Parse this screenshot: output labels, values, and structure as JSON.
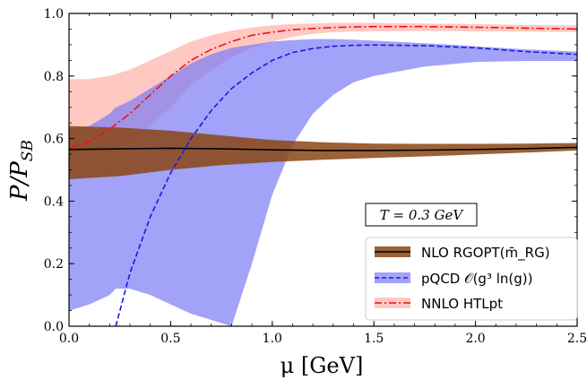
{
  "chart_data": {
    "type": "line",
    "xlabel": "μ [GeV]",
    "ylabel": "P/P_SB",
    "ylabel_main": "P/P",
    "ylabel_sub": "SB",
    "xlim": [
      0.0,
      2.5
    ],
    "ylim": [
      0.0,
      1.0
    ],
    "x_ticks": [
      "0.0",
      "0.5",
      "1.0",
      "1.5",
      "2.0",
      "2.5"
    ],
    "y_ticks": [
      "0.0",
      "0.2",
      "0.4",
      "0.6",
      "0.8",
      "1.0"
    ],
    "annotation": "T = 0.3 GeV",
    "legend_position": "lower-right",
    "series": [
      {
        "name": "NNLO HTLpt",
        "style": "dashdot",
        "line_color": "#ee1111",
        "band_color": "#ffb0a8",
        "band_opacity": 0.7,
        "x": [
          0.0,
          0.1,
          0.2,
          0.3,
          0.4,
          0.5,
          0.6,
          0.7,
          0.8,
          0.9,
          1.0,
          1.1,
          1.2,
          1.3,
          1.4,
          1.5,
          1.75,
          2.0,
          2.25,
          2.5
        ],
        "y": [
          0.57,
          0.59,
          0.63,
          0.68,
          0.74,
          0.8,
          0.85,
          0.885,
          0.91,
          0.93,
          0.94,
          0.948,
          0.952,
          0.955,
          0.957,
          0.958,
          0.958,
          0.956,
          0.953,
          0.95
        ],
        "lower": [
          0.56,
          0.56,
          0.57,
          0.59,
          0.64,
          0.7,
          0.77,
          0.82,
          0.86,
          0.89,
          0.91,
          0.925,
          0.935,
          0.94,
          0.942,
          0.943,
          0.944,
          0.943,
          0.942,
          0.94
        ],
        "upper": [
          0.79,
          0.79,
          0.8,
          0.82,
          0.85,
          0.88,
          0.91,
          0.93,
          0.945,
          0.955,
          0.962,
          0.966,
          0.968,
          0.97,
          0.97,
          0.97,
          0.968,
          0.966,
          0.963,
          0.962
        ]
      },
      {
        "name": "pQCD 𝒪(g³ ln(g))",
        "style": "dashed",
        "line_color": "#1a1adc",
        "band_color": "#7a7af5",
        "band_opacity": 0.7,
        "x": [
          0.0,
          0.1,
          0.2,
          0.23,
          0.3,
          0.4,
          0.5,
          0.6,
          0.7,
          0.8,
          0.9,
          1.0,
          1.1,
          1.2,
          1.3,
          1.4,
          1.5,
          1.75,
          2.0,
          2.25,
          2.5
        ],
        "y": [
          null,
          null,
          null,
          0.0,
          0.17,
          0.35,
          0.49,
          0.6,
          0.69,
          0.76,
          0.81,
          0.85,
          0.875,
          0.888,
          0.895,
          0.898,
          0.899,
          0.897,
          0.89,
          0.878,
          0.869
        ],
        "lower": [
          0.05,
          0.07,
          0.1,
          0.12,
          0.12,
          0.1,
          0.07,
          0.04,
          0.02,
          0.0,
          0.2,
          0.42,
          0.58,
          0.68,
          0.74,
          0.78,
          0.8,
          0.83,
          0.845,
          0.848,
          0.848
        ],
        "upper": [
          0.63,
          0.64,
          0.68,
          0.7,
          0.72,
          0.76,
          0.8,
          0.84,
          0.87,
          0.89,
          0.9,
          0.91,
          0.915,
          0.918,
          0.918,
          0.916,
          0.913,
          0.905,
          0.895,
          0.885,
          0.878
        ]
      },
      {
        "name": "NLO RGOPT(m̄_RG)",
        "style": "solid",
        "line_color": "#000000",
        "band_color": "#8b4513",
        "band_opacity": 0.85,
        "x": [
          0.0,
          0.25,
          0.5,
          0.75,
          1.0,
          1.25,
          1.5,
          1.75,
          2.0,
          2.25,
          2.5
        ],
        "y": [
          0.565,
          0.567,
          0.569,
          0.567,
          0.564,
          0.562,
          0.562,
          0.563,
          0.565,
          0.568,
          0.572
        ],
        "lower": [
          0.47,
          0.48,
          0.5,
          0.515,
          0.525,
          0.532,
          0.538,
          0.543,
          0.549,
          0.555,
          0.562
        ],
        "upper": [
          0.64,
          0.635,
          0.625,
          0.61,
          0.595,
          0.588,
          0.584,
          0.583,
          0.583,
          0.584,
          0.586
        ]
      }
    ]
  }
}
